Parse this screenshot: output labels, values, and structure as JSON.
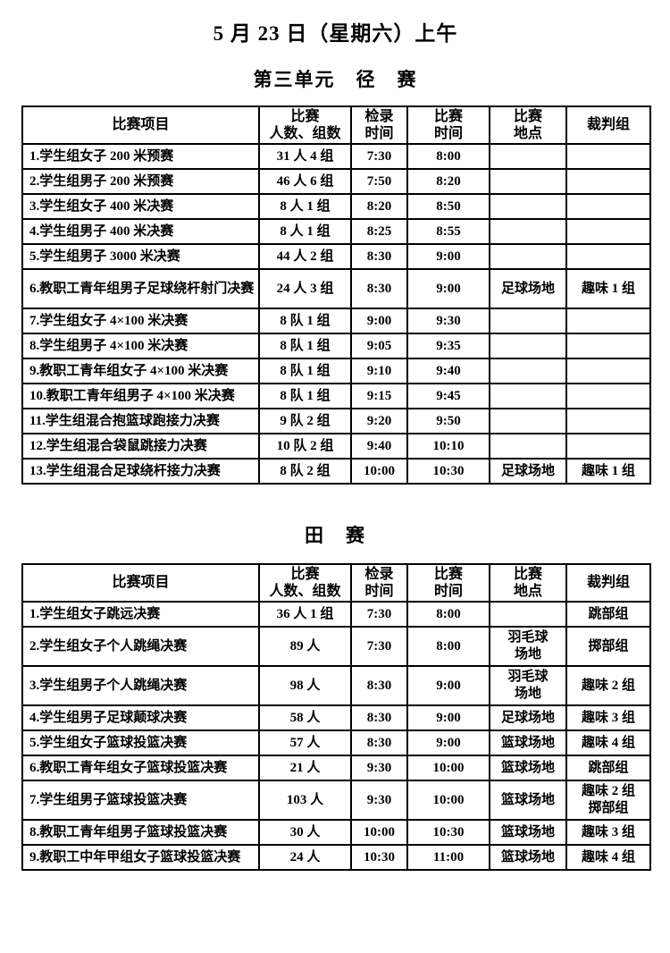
{
  "document": {
    "date_title": "5 月 23 日（星期六）上午",
    "unit_title": "第三单元　径　赛",
    "field_title": "田　赛"
  },
  "colors": {
    "text": "#000000",
    "border": "#000000",
    "background": "#ffffff"
  },
  "tables": [
    {
      "id": "track-events",
      "columns": [
        "比赛项目",
        "比赛\n人数、组数",
        "检录\n时间",
        "比赛\n时间",
        "比赛\n地点",
        "裁判组"
      ],
      "rows": [
        [
          "1.学生组女子 200 米预赛",
          "31 人 4 组",
          "7:30",
          "8:00",
          "",
          ""
        ],
        [
          "2.学生组男子 200 米预赛",
          "46 人 6 组",
          "7:50",
          "8:20",
          "",
          ""
        ],
        [
          "3.学生组女子 400 米决赛",
          "8 人 1 组",
          "8:20",
          "8:50",
          "",
          ""
        ],
        [
          "4.学生组男子 400 米决赛",
          "8 人 1 组",
          "8:25",
          "8:55",
          "",
          ""
        ],
        [
          "5.学生组男子 3000 米决赛",
          "44 人 2 组",
          "8:30",
          "9:00",
          "",
          ""
        ],
        [
          "6.教职工青年组男子足球绕杆射门决赛",
          "24 人 3 组",
          "8:30",
          "9:00",
          "足球场地",
          "趣味 1 组"
        ],
        [
          "7.学生组女子 4×100 米决赛",
          "8 队 1 组",
          "9:00",
          "9:30",
          "",
          ""
        ],
        [
          "8.学生组男子 4×100 米决赛",
          "8 队 1 组",
          "9:05",
          "9:35",
          "",
          ""
        ],
        [
          "9.教职工青年组女子 4×100 米决赛",
          "8 队 1 组",
          "9:10",
          "9:40",
          "",
          ""
        ],
        [
          "10.教职工青年组男子 4×100 米决赛",
          "8 队 1 组",
          "9:15",
          "9:45",
          "",
          ""
        ],
        [
          "11.学生组混合抱篮球跑接力决赛",
          "9 队 2 组",
          "9:20",
          "9:50",
          "",
          ""
        ],
        [
          "12.学生组混合袋鼠跳接力决赛",
          "10 队 2 组",
          "9:40",
          "10:10",
          "",
          ""
        ],
        [
          "13.学生组混合足球绕杆接力决赛",
          "8 队 2 组",
          "10:00",
          "10:30",
          "足球场地",
          "趣味 1 组"
        ]
      ]
    },
    {
      "id": "field-events",
      "columns": [
        "比赛项目",
        "比赛\n人数、组数",
        "检录\n时间",
        "比赛\n时间",
        "比赛\n地点",
        "裁判组"
      ],
      "rows": [
        [
          "1.学生组女子跳远决赛",
          "36 人 1 组",
          "7:30",
          "8:00",
          "",
          "跳部组"
        ],
        [
          "2.学生组女子个人跳绳决赛",
          "89 人",
          "7:30",
          "8:00",
          "羽毛球\n场地",
          "掷部组"
        ],
        [
          "3.学生组男子个人跳绳决赛",
          "98 人",
          "8:30",
          "9:00",
          "羽毛球\n场地",
          "趣味 2 组"
        ],
        [
          "4.学生组男子足球颠球决赛",
          "58 人",
          "8:30",
          "9:00",
          "足球场地",
          "趣味 3 组"
        ],
        [
          "5.学生组女子篮球投篮决赛",
          "57 人",
          "8:30",
          "9:00",
          "篮球场地",
          "趣味 4 组"
        ],
        [
          "6.教职工青年组女子篮球投篮决赛",
          "21 人",
          "9:30",
          "10:00",
          "篮球场地",
          "跳部组"
        ],
        [
          "7.学生组男子篮球投篮决赛",
          "103 人",
          "9:30",
          "10:00",
          "篮球场地",
          "趣味 2 组\n掷部组"
        ],
        [
          "8.教职工青年组男子篮球投篮决赛",
          "30 人",
          "10:00",
          "10:30",
          "篮球场地",
          "趣味 3 组"
        ],
        [
          "9.教职工中年甲组女子篮球投篮决赛",
          "24 人",
          "10:30",
          "11:00",
          "篮球场地",
          "趣味 4 组"
        ]
      ]
    }
  ]
}
